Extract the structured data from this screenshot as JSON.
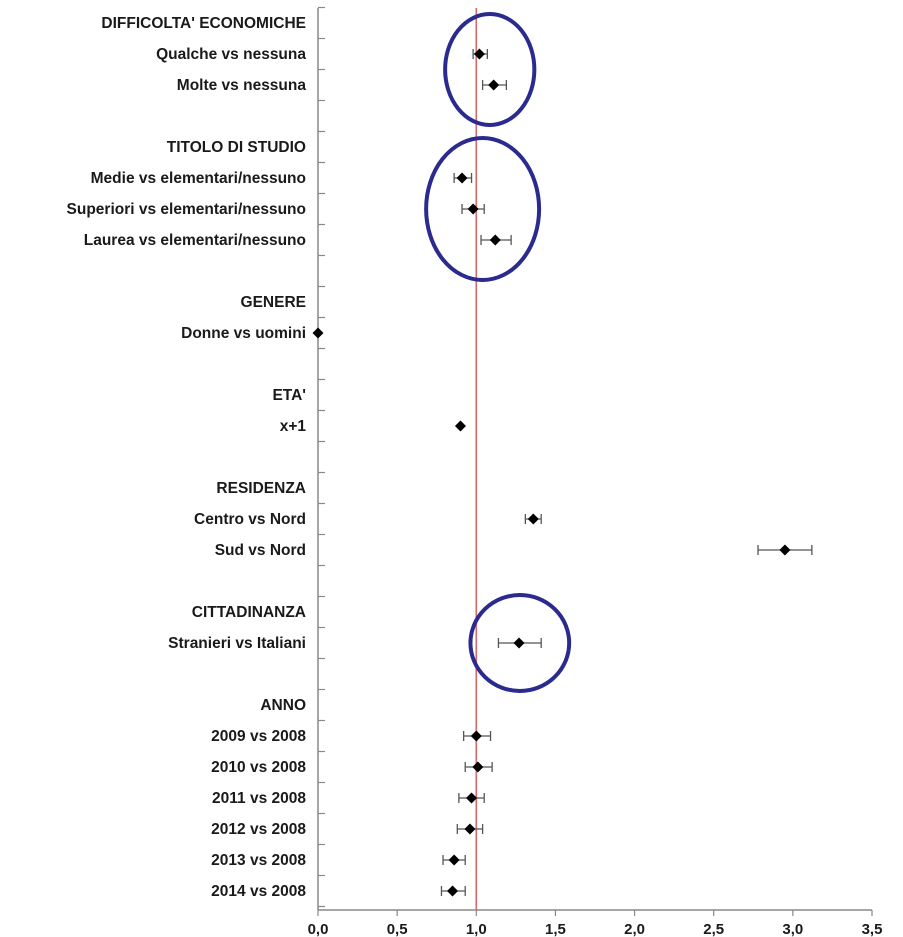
{
  "chart_data": {
    "type": "forest",
    "xlim": [
      0,
      3.5
    ],
    "xticks": [
      "0,0",
      "0,5",
      "1,0",
      "1,5",
      "2,0",
      "2,5",
      "3,0",
      "3,5"
    ],
    "reference_line": 1.0,
    "colors": {
      "reference_line": "#d46a6a",
      "marker": "#000000",
      "error_bar": "#555555",
      "highlight": "#2a2a8f",
      "axis": "#888888"
    },
    "rows": [
      {
        "label": "DIFFICOLTA' ECONOMICHE",
        "header": true
      },
      {
        "label": "Qualche vs nessuna",
        "value": 1.02,
        "lo": 0.98,
        "hi": 1.07
      },
      {
        "label": "Molte vs nessuna",
        "value": 1.11,
        "lo": 1.04,
        "hi": 1.19
      },
      {
        "label": "",
        "spacer": true
      },
      {
        "label": "TITOLO DI STUDIO",
        "header": true
      },
      {
        "label": "Medie vs elementari/nessuno",
        "value": 0.91,
        "lo": 0.86,
        "hi": 0.97
      },
      {
        "label": "Superiori vs elementari/nessuno",
        "value": 0.98,
        "lo": 0.91,
        "hi": 1.05
      },
      {
        "label": "Laurea vs elementari/nessuno",
        "value": 1.12,
        "lo": 1.03,
        "hi": 1.22
      },
      {
        "label": "",
        "spacer": true
      },
      {
        "label": "GENERE",
        "header": true
      },
      {
        "label": "Donne vs uomini",
        "value": 0.0,
        "lo": 0.0,
        "hi": 0.0
      },
      {
        "label": "",
        "spacer": true
      },
      {
        "label": "ETA'",
        "header": true
      },
      {
        "label": "x+1",
        "value": 0.9,
        "lo": 0.9,
        "hi": 0.9
      },
      {
        "label": "",
        "spacer": true
      },
      {
        "label": "RESIDENZA",
        "header": true
      },
      {
        "label": "Centro vs Nord",
        "value": 1.36,
        "lo": 1.31,
        "hi": 1.41
      },
      {
        "label": "Sud vs Nord",
        "value": 2.95,
        "lo": 2.78,
        "hi": 3.12
      },
      {
        "label": "",
        "spacer": true
      },
      {
        "label": "CITTADINANZA",
        "header": true
      },
      {
        "label": "Stranieri vs Italiani",
        "value": 1.27,
        "lo": 1.14,
        "hi": 1.41
      },
      {
        "label": "",
        "spacer": true
      },
      {
        "label": "ANNO",
        "header": true
      },
      {
        "label": "2009 vs 2008",
        "value": 1.0,
        "lo": 0.92,
        "hi": 1.09
      },
      {
        "label": "2010 vs 2008",
        "value": 1.01,
        "lo": 0.93,
        "hi": 1.1
      },
      {
        "label": "2011 vs 2008",
        "value": 0.97,
        "lo": 0.89,
        "hi": 1.05
      },
      {
        "label": "2012 vs 2008",
        "value": 0.96,
        "lo": 0.88,
        "hi": 1.04
      },
      {
        "label": "2013 vs 2008",
        "value": 0.86,
        "lo": 0.79,
        "hi": 0.93
      },
      {
        "label": "2014 vs 2008",
        "value": 0.85,
        "lo": 0.78,
        "hi": 0.93
      }
    ],
    "highlights": [
      {
        "group": "DIFFICOLTA' ECONOMICHE",
        "rows": [
          1,
          2
        ]
      },
      {
        "group": "TITOLO DI STUDIO",
        "rows": [
          5,
          7
        ]
      },
      {
        "group": "CITTADINANZA",
        "rows": [
          20,
          20
        ]
      }
    ]
  }
}
